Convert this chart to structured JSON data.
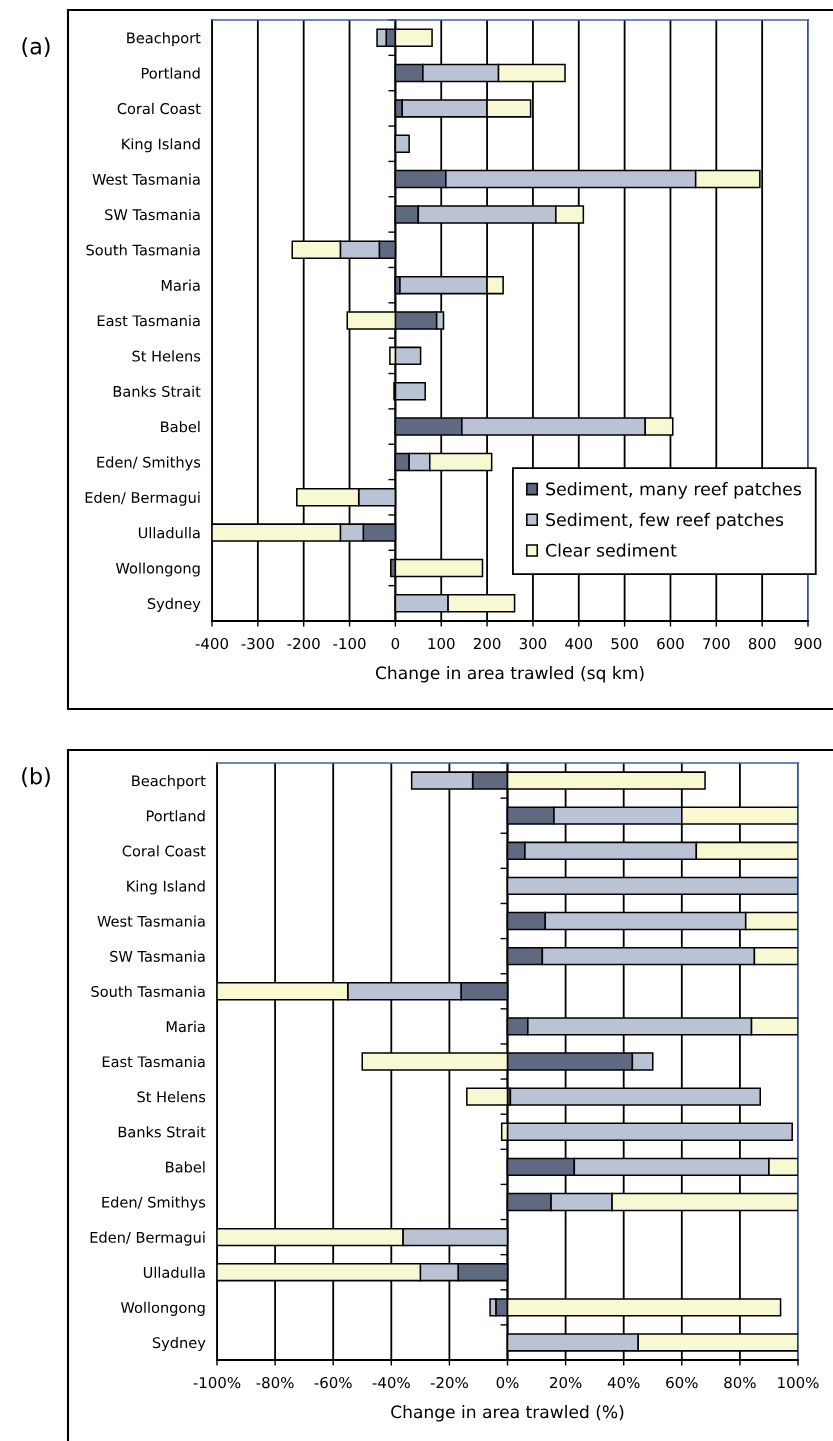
{
  "chart_data": [
    {
      "type": "bar",
      "orientation": "horizontal",
      "stacked": true,
      "title": "(a)",
      "xlabel": "Change in area trawled (sq km)",
      "categories": [
        "Beachport",
        "Portland",
        "Coral Coast",
        "King Island",
        "West Tasmania",
        "SW Tasmania",
        "South Tasmania",
        "Maria",
        "East Tasmania",
        "St Helens",
        "Banks Strait",
        "Babel",
        "Eden/ Smithys",
        "Eden/ Bermagui",
        "Ulladulla",
        "Wollongong",
        "Sydney"
      ],
      "series": [
        {
          "name": "Sediment, many reef patches",
          "color": "#5f6a80",
          "values": [
            -20,
            60,
            15,
            null,
            110,
            50,
            -35,
            10,
            90,
            null,
            null,
            145,
            30,
            null,
            -70,
            -10,
            null
          ]
        },
        {
          "name": "Sediment, few reef patches",
          "color": "#bac3d4",
          "values": [
            -20,
            165,
            185,
            30,
            545,
            300,
            -85,
            190,
            15,
            55,
            65,
            400,
            45,
            -80,
            -50,
            null,
            115
          ]
        },
        {
          "name": "Clear sediment",
          "color": "#f8f8d2",
          "values": [
            80,
            145,
            95,
            null,
            140,
            60,
            -105,
            35,
            -105,
            -12,
            -3,
            60,
            135,
            -135,
            -280,
            190,
            145
          ]
        }
      ],
      "xlim": [
        -400,
        900
      ],
      "xticks": [
        -400,
        -300,
        -200,
        -100,
        0,
        100,
        200,
        300,
        400,
        500,
        600,
        700,
        800,
        900
      ],
      "grid": "x",
      "legend": "bottom right"
    },
    {
      "type": "bar",
      "orientation": "horizontal",
      "stacked": true,
      "title": "(b)",
      "xlabel": "Change in area trawled (%)",
      "categories": [
        "Beachport",
        "Portland",
        "Coral Coast",
        "King Island",
        "West Tasmania",
        "SW Tasmania",
        "South Tasmania",
        "Maria",
        "East Tasmania",
        "St Helens",
        "Banks Strait",
        "Babel",
        "Eden/ Smithys",
        "Eden/ Bermagui",
        "Ulladulla",
        "Wollongong",
        "Sydney"
      ],
      "series": [
        {
          "color": "#5f6a80",
          "values": [
            -12,
            16,
            6,
            null,
            13,
            12,
            -16,
            7,
            43,
            1,
            null,
            23,
            15,
            null,
            -17,
            -4,
            null
          ]
        },
        {
          "color": "#bac3d4",
          "values": [
            -21,
            44,
            59,
            100,
            69,
            73,
            -39,
            77,
            7,
            86,
            98,
            67,
            21,
            -36,
            -13,
            -2,
            45
          ]
        },
        {
          "color": "#f8f8d2",
          "values": [
            68,
            40,
            35,
            null,
            18,
            15,
            -45,
            16,
            -50,
            -14,
            -2,
            10,
            64,
            -64,
            -70,
            94,
            55
          ]
        }
      ],
      "xlim": [
        -100,
        100
      ],
      "xticks": [
        {
          "value": -100,
          "label": "-100%"
        },
        {
          "value": -80,
          "label": "-80%"
        },
        {
          "value": -60,
          "label": "-60%"
        },
        {
          "value": -40,
          "label": "-40%"
        },
        {
          "value": -20,
          "label": "-20%"
        },
        {
          "value": 0,
          "label": "0%"
        },
        {
          "value": 20,
          "label": "20%"
        },
        {
          "value": 40,
          "label": "40%"
        },
        {
          "value": 60,
          "label": "60%"
        },
        {
          "value": 80,
          "label": "80%"
        },
        {
          "value": 100,
          "label": "100%"
        }
      ],
      "grid": "x"
    }
  ]
}
